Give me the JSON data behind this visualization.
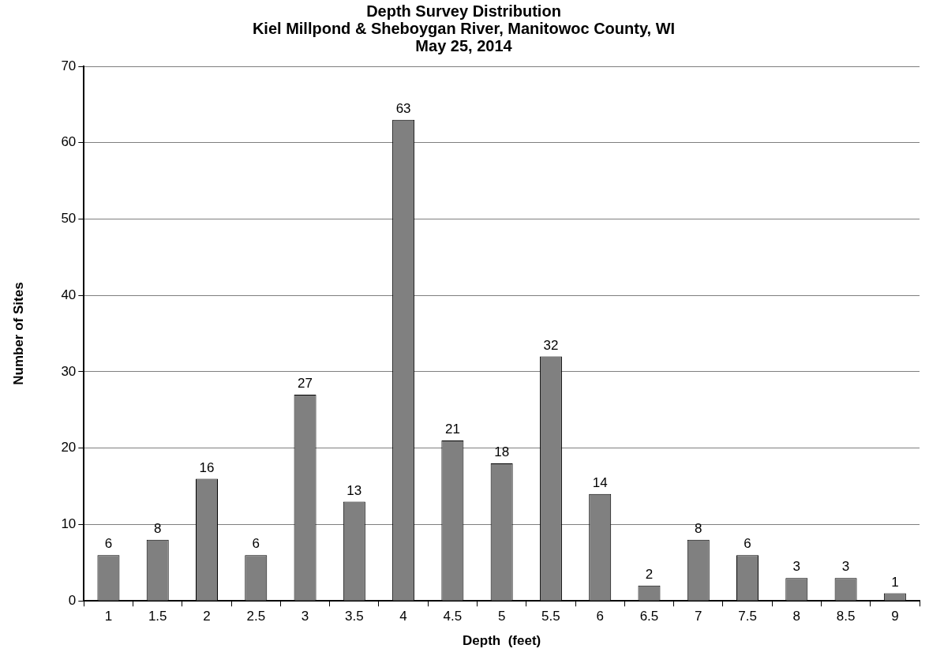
{
  "chart_data": {
    "type": "bar",
    "title": "Depth Survey Distribution\nKiel Millpond & Sheboygan River, Manitowoc County, WI\nMay 25, 2014",
    "xlabel": "Depth  (feet)",
    "ylabel": "Number of Sites",
    "categories": [
      "1",
      "1.5",
      "2",
      "2.5",
      "3",
      "3.5",
      "4",
      "4.5",
      "5",
      "5.5",
      "6",
      "6.5",
      "7",
      "7.5",
      "8",
      "8.5",
      "9"
    ],
    "values": [
      6,
      8,
      16,
      6,
      27,
      13,
      63,
      21,
      18,
      32,
      14,
      2,
      8,
      6,
      3,
      3,
      1
    ],
    "color": "#808080",
    "ylim": [
      0,
      70
    ],
    "yticks": [
      0,
      10,
      20,
      30,
      40,
      50,
      60,
      70
    ],
    "grid": "y",
    "data_labels": true
  }
}
